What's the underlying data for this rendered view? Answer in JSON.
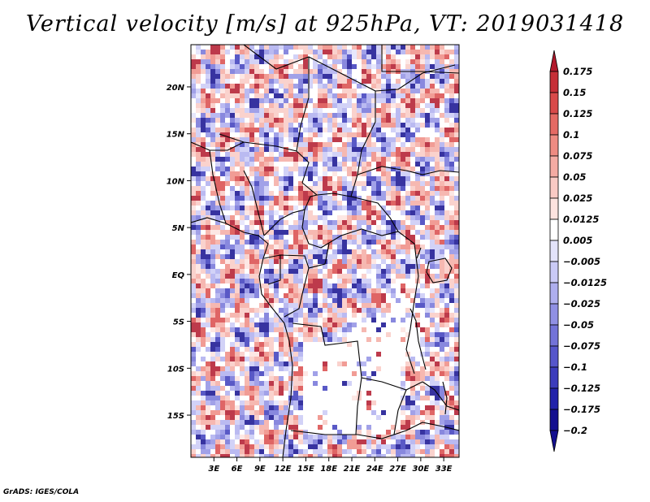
{
  "chart_data": {
    "type": "heatmap",
    "title": "Vertical velocity [m/s] at 925hPa, VT: 2019031418",
    "variable": "Vertical velocity",
    "units": "m/s",
    "level": "925hPa",
    "valid_time": "2019031418",
    "xlim": [
      0,
      35
    ],
    "ylim": [
      -19.5,
      24.5
    ],
    "x_ticks": [
      3,
      6,
      9,
      12,
      15,
      18,
      21,
      24,
      27,
      30,
      33
    ],
    "x_tick_labels": [
      "3E",
      "6E",
      "9E",
      "12E",
      "15E",
      "18E",
      "21E",
      "24E",
      "27E",
      "30E",
      "33E"
    ],
    "y_ticks": [
      20,
      15,
      10,
      5,
      0,
      -5,
      -10,
      -15
    ],
    "y_tick_labels": [
      "20N",
      "15N",
      "10N",
      "5N",
      "EQ",
      "5S",
      "10S",
      "15S"
    ],
    "colorbar": {
      "levels": [
        "0.175",
        "0.15",
        "0.125",
        "0.1",
        "0.075",
        "0.05",
        "0.025",
        "0.0125",
        "0.005",
        "-0.005",
        "-0.0125",
        "-0.025",
        "-0.05",
        "-0.075",
        "-0.1",
        "-0.125",
        "-0.175",
        "-0.2"
      ],
      "colors": [
        "#b2182b",
        "#c62f37",
        "#d94a4a",
        "#e56a64",
        "#ee8b82",
        "#f4aba3",
        "#f9cac4",
        "#fde3df",
        "#ffffff",
        "#e3e3fb",
        "#cacaf6",
        "#aeaeee",
        "#9090e4",
        "#7373d8",
        "#5656cb",
        "#3c3cbc",
        "#2222aa",
        "#140f8f"
      ]
    }
  },
  "footer": "GrADS: IGES/COLA"
}
